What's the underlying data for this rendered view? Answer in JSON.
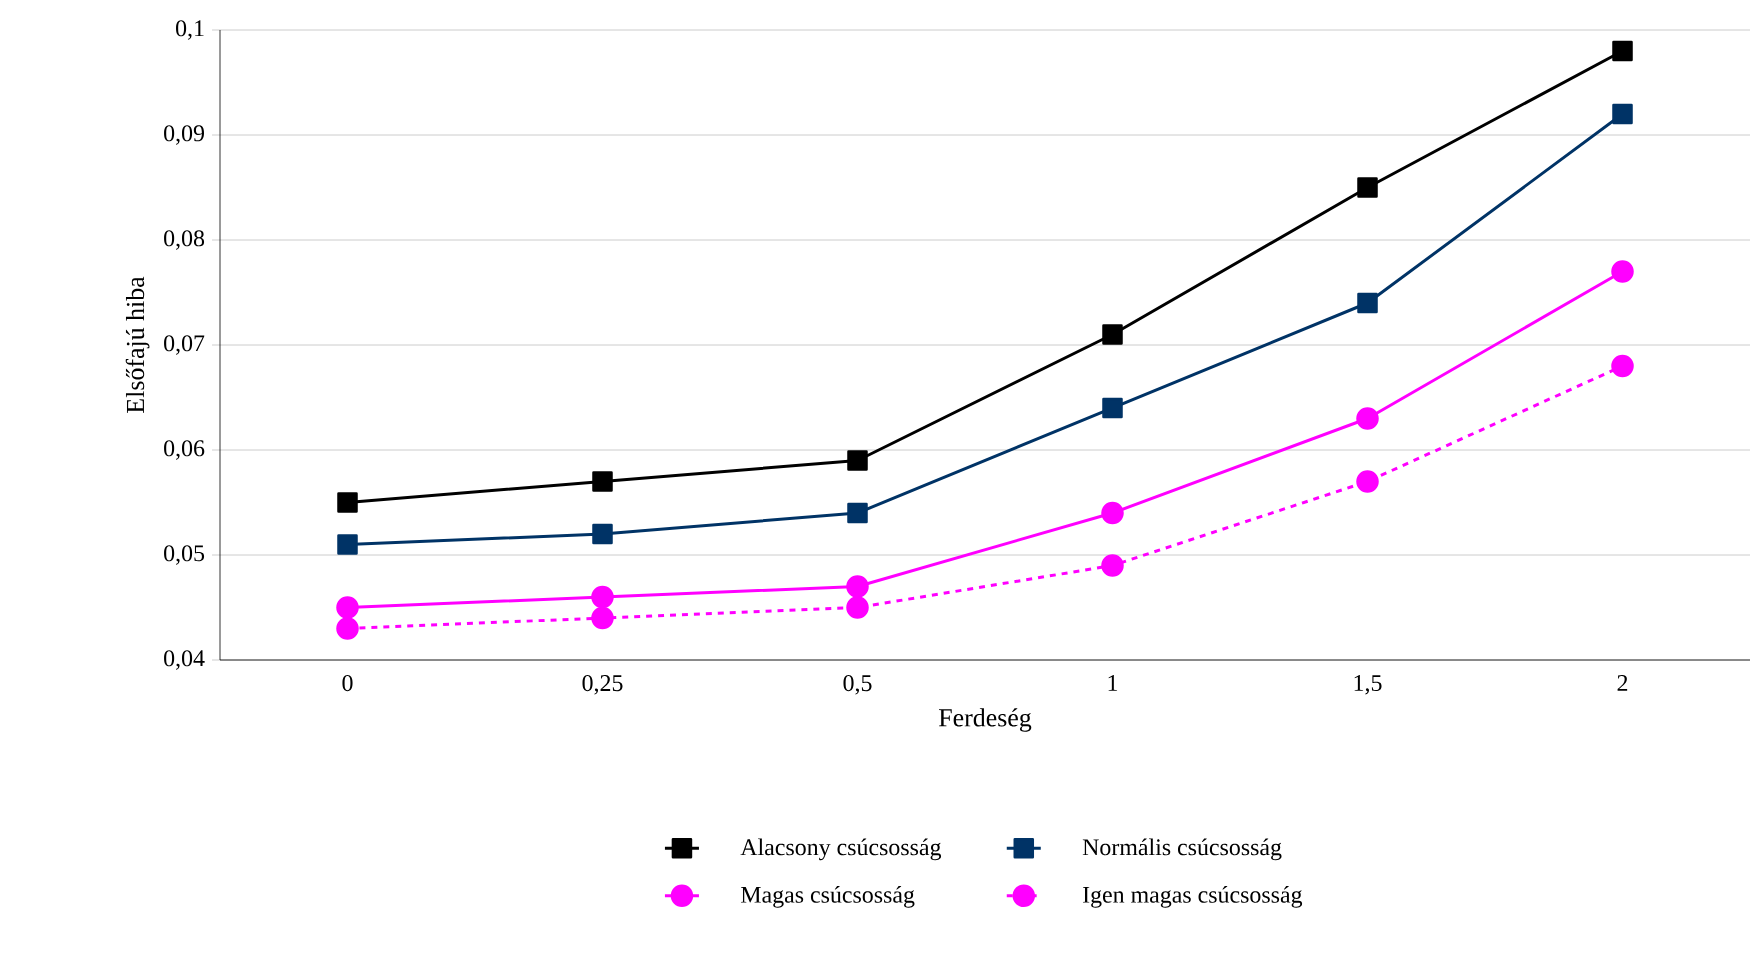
{
  "chart_data": {
    "type": "line",
    "xlabel": "Ferdeség",
    "ylabel": "Elsőfajú hiba",
    "categories": [
      "0",
      "0,25",
      "0,5",
      "1",
      "1,5",
      "2"
    ],
    "series": [
      {
        "name": "Alacsony csúcsosság",
        "color": "#000000",
        "marker": "square",
        "line_style": "solid",
        "values": [
          0.055,
          0.057,
          0.059,
          0.071,
          0.085,
          0.098
        ]
      },
      {
        "name": "Normális csúcsosság",
        "color": "#003366",
        "marker": "square",
        "line_style": "solid",
        "values": [
          0.051,
          0.052,
          0.054,
          0.064,
          0.074,
          0.092
        ]
      },
      {
        "name": "Magas csúcsosság",
        "color": "#ff00ff",
        "marker": "circle",
        "line_style": "solid",
        "values": [
          0.045,
          0.046,
          0.047,
          0.054,
          0.063,
          0.077
        ]
      },
      {
        "name": "Igen magas csúcsosság",
        "color": "#ff00ff",
        "marker": "circle",
        "line_style": "dashed",
        "values": [
          0.043,
          0.044,
          0.045,
          0.049,
          0.057,
          0.068
        ]
      }
    ],
    "ylim": [
      0.04,
      0.1
    ],
    "yticks": [
      {
        "value": 0.04,
        "label": "0,04"
      },
      {
        "value": 0.05,
        "label": "0,05"
      },
      {
        "value": 0.06,
        "label": "0,06"
      },
      {
        "value": 0.07,
        "label": "0,07"
      },
      {
        "value": 0.08,
        "label": "0,08"
      },
      {
        "value": 0.09,
        "label": "0,09"
      },
      {
        "value": 0.1,
        "label": "0,1"
      }
    ],
    "grid": "y",
    "legend": "bottom"
  }
}
